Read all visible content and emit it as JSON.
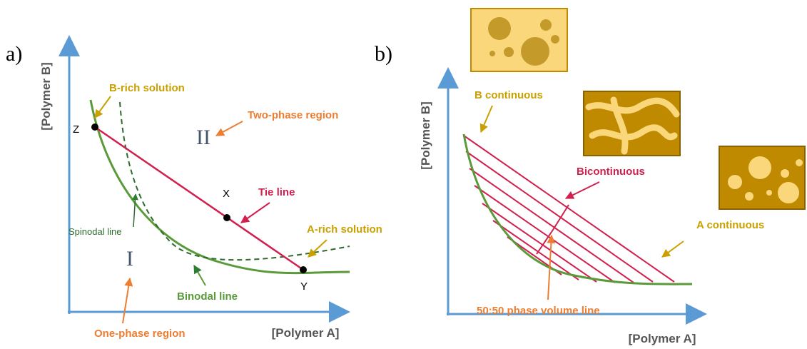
{
  "panel_a": {
    "label": "a)",
    "y_axis": "[Polymer B]",
    "x_axis": "[Polymer A]",
    "annotations": {
      "b_rich": "B-rich solution",
      "two_phase": "Two-phase region",
      "tie_line": "Tie line",
      "a_rich": "A-rich solution",
      "spinodal": "Spinodal line",
      "binodal": "Binodal line",
      "one_phase": "One-phase region"
    },
    "regions": [
      "I",
      "II"
    ],
    "points": [
      "Z",
      "X",
      "Y"
    ]
  },
  "panel_b": {
    "label": "b)",
    "y_axis": "[Polymer B]",
    "x_axis": "[Polymer A]",
    "annotations": {
      "b_cont": "B continuous",
      "bicont": "Bicontinuous",
      "a_cont": "A continuous",
      "volume_line": "50:50 phase volume line"
    }
  }
}
